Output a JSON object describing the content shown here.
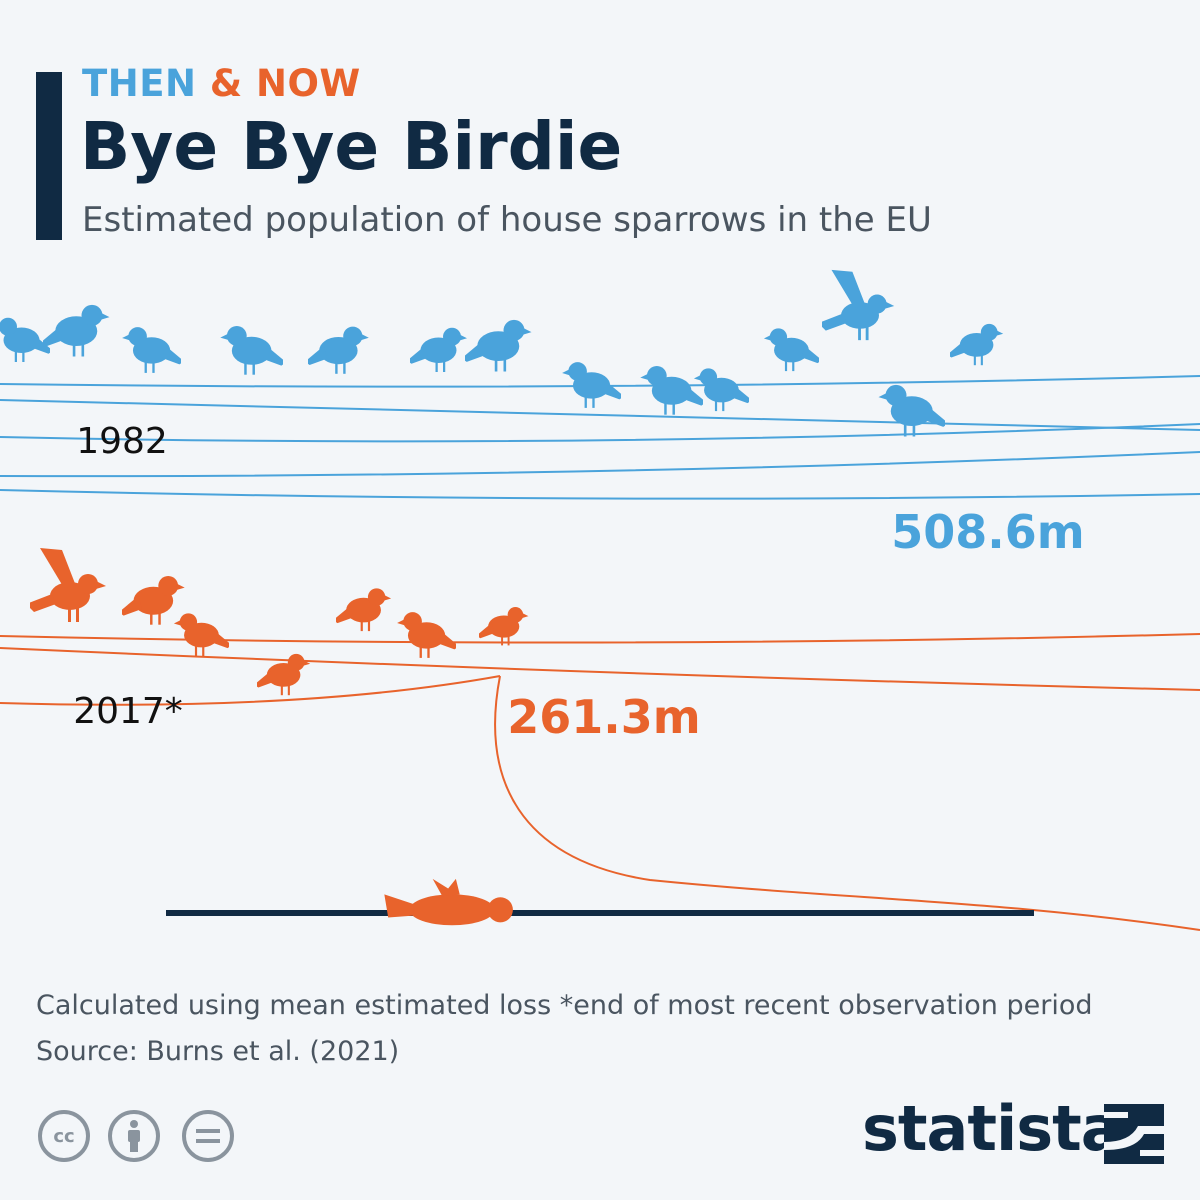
{
  "header": {
    "kicker_then": "THEN",
    "kicker_amp": " & NOW",
    "title": "Bye Bye Birdie",
    "subtitle": "Estimated population of house sparrows in the EU"
  },
  "chart_data": {
    "type": "pictogram",
    "title": "Bye Bye Birdie",
    "subtitle": "Estimated population of house sparrows in the EU",
    "series": [
      {
        "name": "1982",
        "label": "1982",
        "value": 508.6,
        "value_label": "508.6m",
        "color": "#4aa3db"
      },
      {
        "name": "2017",
        "label": "2017*",
        "value": 261.3,
        "value_label": "261.3m",
        "color": "#e8632c"
      }
    ],
    "unit": "m"
  },
  "footer": {
    "note": "Calculated using mean estimated loss   *end of most recent observation period",
    "source": "Source: Burns et al. (2021)"
  },
  "license_icons": [
    "cc-icon",
    "attribution-icon",
    "no-derivatives-icon"
  ],
  "brand": {
    "name": "statista",
    "color": "#102a43"
  },
  "colors": {
    "blue": "#4aa3db",
    "orange": "#e8632c",
    "navy": "#102a43",
    "background": "#f3f6f9"
  }
}
